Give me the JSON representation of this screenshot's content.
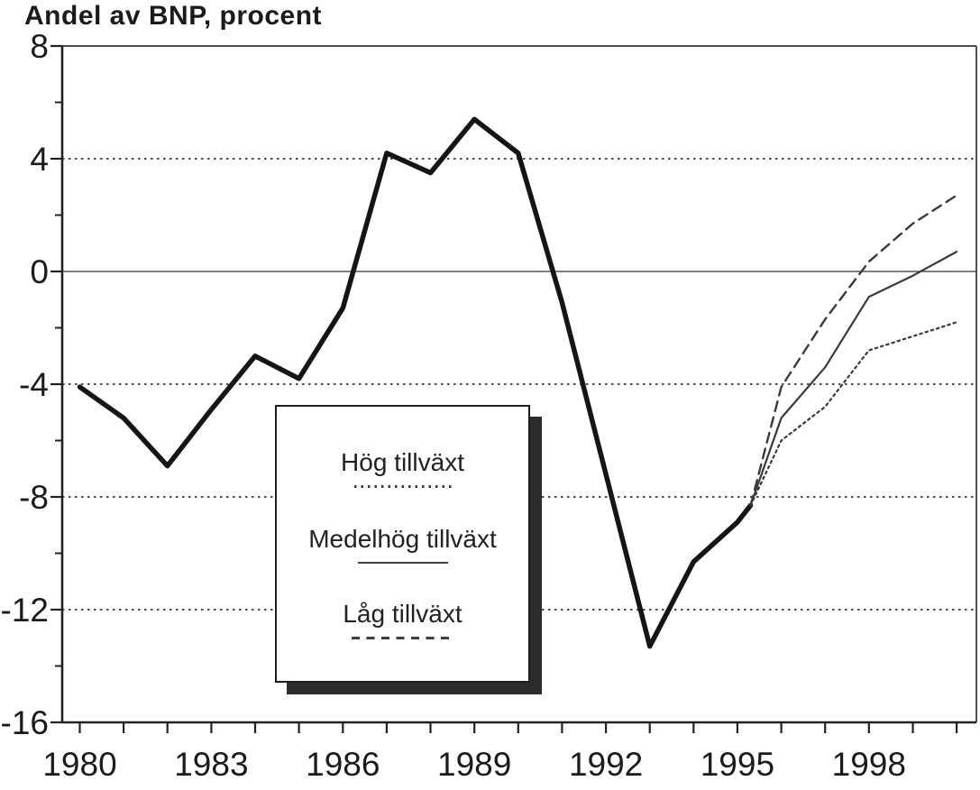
{
  "chart_data": {
    "type": "line",
    "title": "Andel av BNP, procent",
    "xlabel": "",
    "ylabel": "Andel av BNP, procent",
    "xlim": [
      1979.6,
      2000.45
    ],
    "ylim": [
      -16,
      8
    ],
    "y_ticks": [
      8,
      4,
      0,
      -4,
      -8,
      -12,
      -16
    ],
    "y_minor_tick_step": 2,
    "x_tick_labels": [
      1980,
      1983,
      1986,
      1989,
      1992,
      1995,
      1998
    ],
    "x_minor_tick_years": [
      1980,
      2000
    ],
    "gridlines": {
      "dotted_y": [
        4,
        -4,
        -8,
        -12
      ],
      "solid_y": [
        0
      ],
      "frame": true
    },
    "legend": {
      "position": "center-bottom-inset",
      "order": [
        1,
        2,
        3
      ]
    },
    "series": [
      {
        "name": "",
        "style": "thick",
        "x": [
          1980,
          1981,
          1982,
          1983,
          1984,
          1985,
          1986,
          1987,
          1988,
          1989,
          1990,
          1991,
          1992,
          1993,
          1994,
          1995,
          1995.3
        ],
        "y": [
          -4.1,
          -5.2,
          -6.9,
          -4.9,
          -3.0,
          -3.8,
          -1.3,
          4.2,
          3.5,
          5.4,
          4.2,
          -1.1,
          -7.2,
          -13.3,
          -10.3,
          -8.9,
          -8.3
        ]
      },
      {
        "name": "Hög tillväxt",
        "style": "dotted",
        "x": [
          1995.3,
          1996,
          1997,
          1998,
          1999,
          2000
        ],
        "y": [
          -8.3,
          -6.0,
          -4.8,
          -2.8,
          -2.3,
          -1.8
        ]
      },
      {
        "name": "Medelhög tillväxt",
        "style": "solid",
        "x": [
          1995.3,
          1996,
          1997,
          1998,
          1999,
          2000
        ],
        "y": [
          -8.3,
          -5.2,
          -3.4,
          -0.9,
          -0.15,
          0.7
        ]
      },
      {
        "name": "Låg tillväxt",
        "style": "dashed",
        "x": [
          1995.3,
          1996,
          1997,
          1998,
          1999,
          2000
        ],
        "y": [
          -8.3,
          -4.1,
          -1.7,
          0.35,
          1.7,
          2.7
        ]
      }
    ],
    "colors": {
      "history_line": "#151515",
      "scenario_line": "#3a3a3a",
      "grid": "#333333",
      "zero_line": "#555555",
      "axis": "#222222",
      "text": "#1b1b1b",
      "legend_shadow": "#2c2c2c",
      "background": "#ffffff"
    }
  }
}
